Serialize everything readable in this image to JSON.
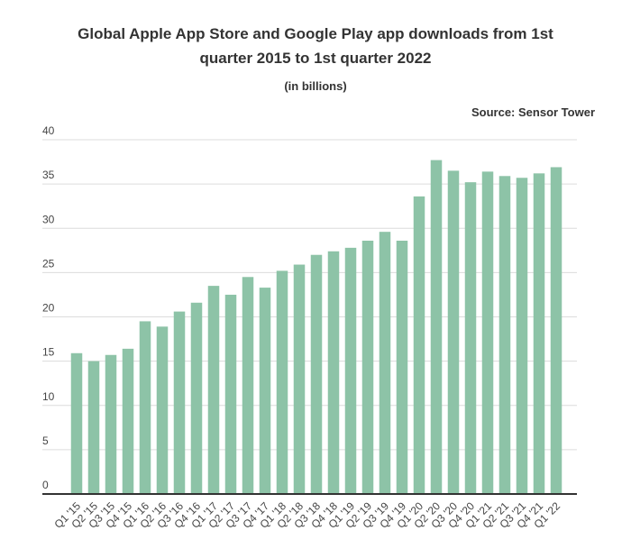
{
  "chart_data": {
    "type": "bar",
    "title": "Global Apple App Store and Google Play app downloads from 1st quarter 2015 to 1st quarter 2022",
    "subtitle": "(in billions)",
    "source": "Source: Sensor Tower",
    "xlabel": "",
    "ylabel": "",
    "ylim": [
      0,
      40
    ],
    "yticks": [
      0,
      5,
      10,
      15,
      20,
      25,
      30,
      35,
      40
    ],
    "grid": true,
    "bar_color": "#8dc3a7",
    "categories": [
      "Q1 '15",
      "Q2 '15",
      "Q3 '15",
      "Q4 '15",
      "Q1 '16",
      "Q2 '16",
      "Q3 '16",
      "Q4 '16",
      "Q1 '17",
      "Q2 '17",
      "Q3 '17",
      "Q4 '17",
      "Q1 '18",
      "Q2 '18",
      "Q3 '18",
      "Q4 '18",
      "Q1 '19",
      "Q2 '19",
      "Q3 '19",
      "Q4 '19",
      "Q1 '20",
      "Q2 '20",
      "Q3 '20",
      "Q4 '20",
      "Q1 '21",
      "Q2 '21",
      "Q3 '21",
      "Q4 '21",
      "Q1 '22"
    ],
    "values": [
      15.9,
      15.0,
      15.7,
      16.4,
      19.5,
      18.9,
      20.6,
      21.6,
      23.5,
      22.5,
      24.5,
      23.3,
      25.2,
      25.9,
      27.0,
      27.4,
      27.8,
      28.6,
      29.6,
      28.6,
      33.6,
      37.7,
      36.5,
      35.2,
      36.4,
      35.9,
      35.7,
      36.2,
      36.9
    ]
  }
}
